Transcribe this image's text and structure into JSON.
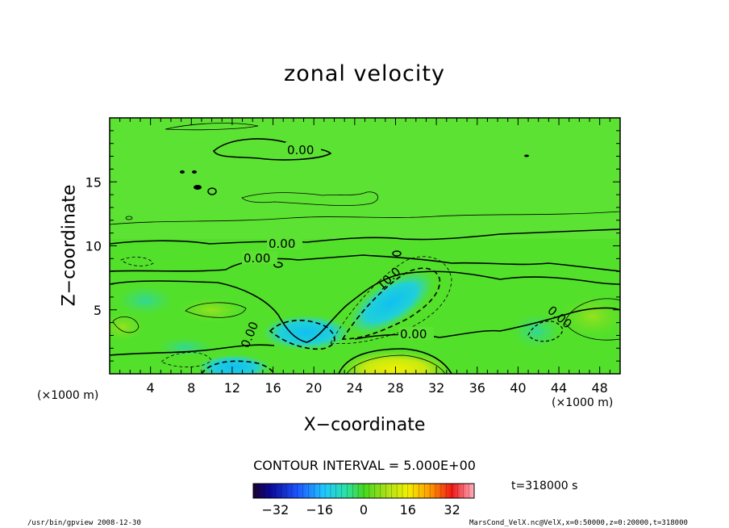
{
  "chart_data": {
    "type": "heatmap",
    "title": "zonal velocity",
    "xlabel": "X−coordinate",
    "ylabel": "Z−coordinate",
    "x_unit": "(×1000 m)",
    "y_unit": "(×1000 m)",
    "xlim": [
      0,
      50
    ],
    "ylim": [
      0,
      20
    ],
    "x_ticks": [
      "4",
      "8",
      "12",
      "16",
      "20",
      "24",
      "28",
      "32",
      "36",
      "40",
      "44",
      "48"
    ],
    "y_ticks": [
      "5",
      "10",
      "15"
    ],
    "contour_interval_text": "CONTOUR INTERVAL = 5.000E+00",
    "contour_labels": [
      "0.00",
      "0.00",
      "0.00",
      "10.0",
      "0.00",
      "0.00",
      "0.00"
    ],
    "colorbar": {
      "range": [
        -40,
        40
      ],
      "ticks": [
        "−32",
        "−16",
        "0",
        "16",
        "32"
      ]
    },
    "time_label": "t=318000 s",
    "colors": {
      "background_field": "#4ee02c",
      "negative_low": "#26d0c8",
      "negative_mid": "#16c8e6",
      "positive_low": "#a8e41c",
      "positive_mid": "#e8f000",
      "contour": "#000000"
    }
  },
  "footer": {
    "left": "/usr/bin/gpview   2008-12-30",
    "right": "MarsCond_VelX.nc@VelX,x=0:50000,z=0:20000,t=318000"
  }
}
